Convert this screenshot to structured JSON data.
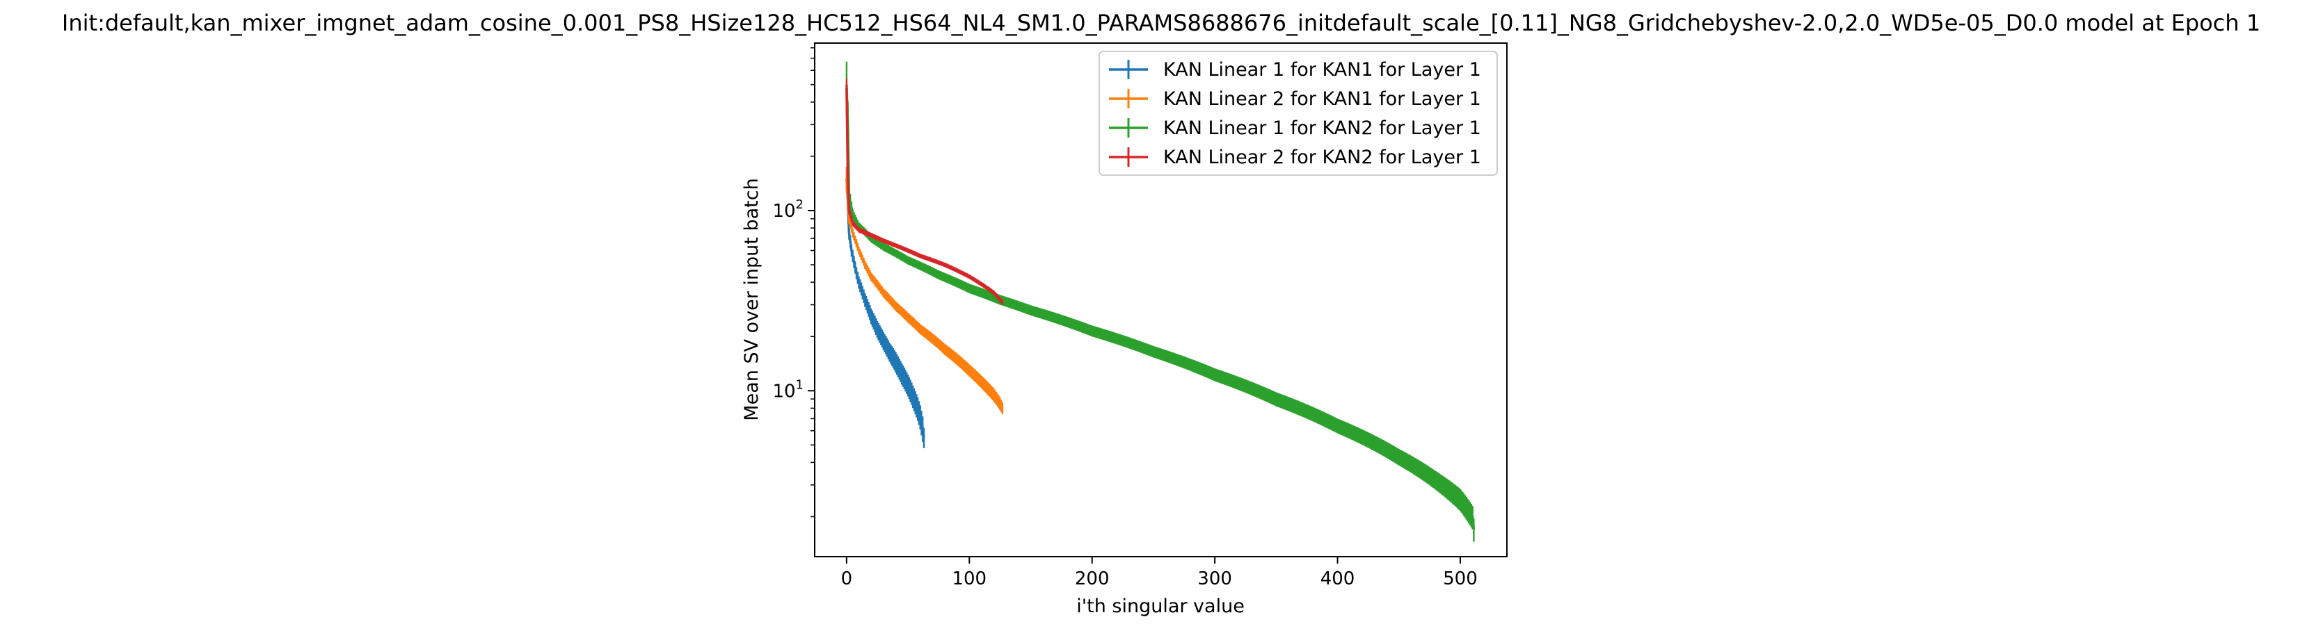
{
  "chart_data": {
    "type": "line",
    "title": "Init:default,kan_mixer_imgnet_adam_cosine_0.001_PS8_HSize128_HC512_HS64_NL4_SM1.0_PARAMS8688676_initdefault_scale_[0.11]_NG8_Gridchebyshev-2.0,2.0_WD5e-05_D0.0 model at Epoch 1",
    "xlabel": "i'th singular value",
    "ylabel": "Mean SV over input batch",
    "yscale": "log",
    "xlim": [
      -26,
      538
    ],
    "ylim": [
      1.2,
      850
    ],
    "xticks": [
      0,
      100,
      200,
      300,
      400,
      500
    ],
    "xtick_labels": [
      "0",
      "100",
      "200",
      "300",
      "400",
      "500"
    ],
    "yticks": [
      10,
      100
    ],
    "ytick_labels": [
      {
        "base": "10",
        "exp": "1"
      },
      {
        "base": "10",
        "exp": "2"
      }
    ],
    "legend_position": "upper right",
    "error_bars": true,
    "series": [
      {
        "name": "KAN Linear 1 for KAN1 for Layer 1",
        "color": "#1f77b4",
        "n_points": 64,
        "x": [
          0,
          2,
          4,
          6,
          8,
          10,
          15,
          20,
          25,
          30,
          35,
          40,
          45,
          50,
          55,
          58,
          60,
          62,
          63
        ],
        "y": [
          150,
          75,
          60,
          52,
          45,
          40,
          32,
          26,
          22,
          19,
          16.5,
          14.5,
          12.5,
          10.8,
          9,
          8,
          7.2,
          6.2,
          5.5
        ],
        "err": [
          20,
          6,
          4.5,
          4,
          3.5,
          3.2,
          2.8,
          2.6,
          2.4,
          2.2,
          2.0,
          1.9,
          1.7,
          1.5,
          1.3,
          1.2,
          1.1,
          1.0,
          0.7
        ]
      },
      {
        "name": "KAN Linear 2 for KAN1 for Layer 1",
        "color": "#ff7f0e",
        "n_points": 128,
        "x": [
          0,
          2,
          5,
          10,
          15,
          20,
          30,
          40,
          50,
          60,
          70,
          80,
          90,
          100,
          110,
          120,
          125,
          127
        ],
        "y": [
          150,
          90,
          75,
          60,
          50,
          43,
          35,
          29.5,
          25.5,
          22,
          19.5,
          17,
          15,
          13,
          11.2,
          9.5,
          8.5,
          8
        ],
        "err": [
          25,
          6,
          4,
          3,
          2.6,
          2.3,
          2.0,
          1.8,
          1.6,
          1.4,
          1.3,
          1.2,
          1.1,
          1.0,
          0.9,
          0.8,
          0.7,
          0.6
        ]
      },
      {
        "name": "KAN Linear 1 for KAN2 for Layer 1",
        "color": "#2ca02c",
        "n_points": 512,
        "x": [
          0,
          2,
          5,
          10,
          20,
          30,
          50,
          75,
          100,
          125,
          150,
          200,
          250,
          300,
          350,
          400,
          450,
          480,
          500,
          510,
          511
        ],
        "y": [
          500,
          120,
          95,
          82,
          70,
          63,
          53,
          44,
          37,
          32,
          28,
          21.5,
          16.5,
          12.3,
          9.0,
          6.4,
          4.3,
          3.2,
          2.5,
          2.0,
          1.7
        ],
        "err": [
          170,
          15,
          6,
          4,
          3.5,
          3.2,
          2.8,
          2.5,
          2.2,
          2.0,
          1.8,
          1.5,
          1.2,
          1.0,
          0.8,
          0.6,
          0.45,
          0.38,
          0.35,
          0.3,
          0.25
        ]
      },
      {
        "name": "KAN Linear 2 for KAN2 for Layer 1",
        "color": "#d62728",
        "n_points": 128,
        "x": [
          0,
          1,
          2,
          5,
          10,
          20,
          30,
          40,
          60,
          80,
          100,
          110,
          120,
          125,
          127
        ],
        "y": [
          480,
          150,
          100,
          85,
          78,
          73,
          68,
          64,
          56,
          50,
          43,
          39,
          35,
          32,
          31
        ],
        "err": [
          60,
          10,
          5,
          3,
          2.5,
          2.2,
          2.0,
          1.8,
          1.6,
          1.4,
          1.2,
          1.1,
          1.0,
          1.0,
          0.9
        ]
      }
    ]
  }
}
